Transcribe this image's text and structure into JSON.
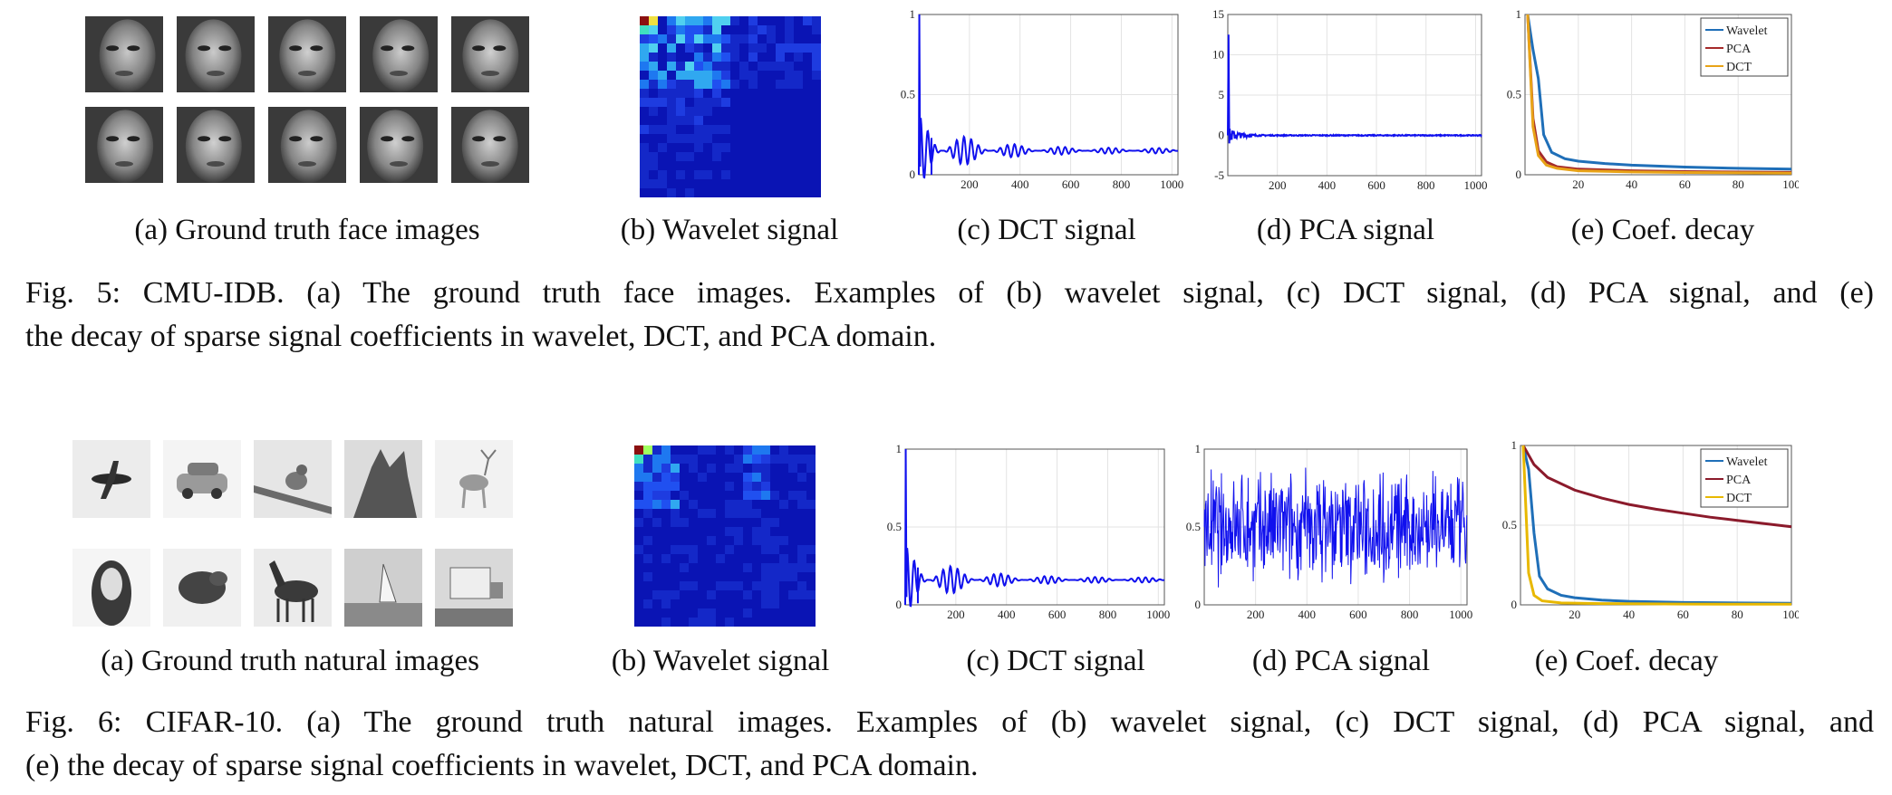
{
  "figures": [
    {
      "id": "fig5",
      "dataset": "CMU-IDB",
      "face_tiles": 10,
      "subcaptions": {
        "a": "(a) Ground truth face images",
        "b": "(b) Wavelet signal",
        "c": "(c) DCT signal",
        "d": "(d) PCA signal",
        "e": "(e) Coef. decay"
      },
      "caption_line1": "Fig. 5: CMU-IDB. (a) The ground truth face images. Examples of (b) wavelet signal, (c) DCT signal, (d) PCA signal, and (e)",
      "caption_line2": "the decay of sparse signal coefficients in wavelet, DCT, and PCA domain.",
      "dct_chart": {
        "type": "line",
        "x_ticks": [
          "200",
          "400",
          "600",
          "800",
          "1000"
        ],
        "y_ticks": [
          "0",
          "0.5",
          "1"
        ],
        "xlim": [
          0,
          1024
        ],
        "ylim": [
          0,
          1
        ],
        "color": "#1010ee"
      },
      "pca_chart": {
        "type": "line",
        "x_ticks": [
          "200",
          "400",
          "600",
          "800",
          "1000"
        ],
        "y_ticks": [
          "-5",
          "0",
          "5",
          "10",
          "15"
        ],
        "xlim": [
          0,
          1024
        ],
        "ylim": [
          -5,
          15
        ],
        "color": "#1010ee"
      },
      "decay_chart": {
        "type": "line",
        "x_ticks": [
          "20",
          "40",
          "60",
          "80",
          "100"
        ],
        "y_ticks": [
          "0",
          "0.5",
          "1"
        ],
        "xlim": [
          0,
          100
        ],
        "ylim": [
          0,
          1
        ],
        "legend": [
          "Wavelet",
          "PCA",
          "DCT"
        ],
        "colors": [
          "#1f6fb8",
          "#a52a2a",
          "#e8a317"
        ],
        "series": [
          {
            "name": "Wavelet",
            "values": [
              [
                1,
                1.0
              ],
              [
                3,
                0.78
              ],
              [
                5,
                0.6
              ],
              [
                7,
                0.25
              ],
              [
                10,
                0.14
              ],
              [
                15,
                0.1
              ],
              [
                20,
                0.085
              ],
              [
                30,
                0.07
              ],
              [
                40,
                0.06
              ],
              [
                60,
                0.048
              ],
              [
                80,
                0.04
              ],
              [
                100,
                0.035
              ]
            ]
          },
          {
            "name": "PCA",
            "values": [
              [
                1,
                1.0
              ],
              [
                3,
                0.35
              ],
              [
                5,
                0.15
              ],
              [
                8,
                0.08
              ],
              [
                12,
                0.05
              ],
              [
                20,
                0.035
              ],
              [
                40,
                0.025
              ],
              [
                60,
                0.02
              ],
              [
                80,
                0.017
              ],
              [
                100,
                0.015
              ]
            ]
          },
          {
            "name": "DCT",
            "values": [
              [
                1,
                1.0
              ],
              [
                3,
                0.3
              ],
              [
                5,
                0.12
              ],
              [
                8,
                0.06
              ],
              [
                12,
                0.04
              ],
              [
                20,
                0.025
              ],
              [
                40,
                0.018
              ],
              [
                60,
                0.014
              ],
              [
                80,
                0.012
              ],
              [
                100,
                0.01
              ]
            ]
          }
        ]
      }
    },
    {
      "id": "fig6",
      "dataset": "CIFAR-10",
      "subcaptions": {
        "a": "(a) Ground truth natural images",
        "b": "(b) Wavelet signal",
        "c": "(c) DCT signal",
        "d": "(d) PCA signal",
        "e": "(e) Coef. decay"
      },
      "caption_line1": "Fig. 6: CIFAR-10. (a) The ground truth natural images. Examples of (b) wavelet signal, (c) DCT signal, (d) PCA signal, and",
      "caption_line2": "(e) the decay of sparse signal coefficients in wavelet, DCT, and PCA domain.",
      "natural_images": [
        "plane",
        "car",
        "bird",
        "cat",
        "deer",
        "dog",
        "frog",
        "horse",
        "ship",
        "truck"
      ],
      "dct_chart": {
        "type": "line",
        "x_ticks": [
          "200",
          "400",
          "600",
          "800",
          "1000"
        ],
        "y_ticks": [
          "0",
          "0.5",
          "1"
        ],
        "xlim": [
          0,
          1024
        ],
        "ylim": [
          0,
          1
        ],
        "color": "#1010ee"
      },
      "pca_chart": {
        "type": "line",
        "x_ticks": [
          "200",
          "400",
          "600",
          "800",
          "1000"
        ],
        "y_ticks": [
          "0",
          "0.5",
          "1"
        ],
        "xlim": [
          0,
          1024
        ],
        "ylim": [
          0,
          1
        ],
        "color": "#1010ee"
      },
      "decay_chart": {
        "type": "line",
        "x_ticks": [
          "20",
          "40",
          "60",
          "80",
          "100"
        ],
        "y_ticks": [
          "0",
          "0.5",
          "1"
        ],
        "xlim": [
          0,
          100
        ],
        "ylim": [
          0,
          1
        ],
        "legend": [
          "Wavelet",
          "PCA",
          "DCT"
        ],
        "colors": [
          "#1f6fb8",
          "#8b1a2b",
          "#e8b800"
        ],
        "series": [
          {
            "name": "Wavelet",
            "values": [
              [
                1,
                1.0
              ],
              [
                3,
                0.85
              ],
              [
                5,
                0.45
              ],
              [
                7,
                0.18
              ],
              [
                10,
                0.1
              ],
              [
                15,
                0.06
              ],
              [
                20,
                0.045
              ],
              [
                30,
                0.03
              ],
              [
                40,
                0.022
              ],
              [
                60,
                0.015
              ],
              [
                80,
                0.012
              ],
              [
                100,
                0.01
              ]
            ]
          },
          {
            "name": "PCA",
            "values": [
              [
                1,
                1.0
              ],
              [
                3,
                0.94
              ],
              [
                5,
                0.88
              ],
              [
                10,
                0.8
              ],
              [
                20,
                0.72
              ],
              [
                30,
                0.67
              ],
              [
                40,
                0.63
              ],
              [
                50,
                0.6
              ],
              [
                60,
                0.575
              ],
              [
                70,
                0.55
              ],
              [
                80,
                0.53
              ],
              [
                90,
                0.51
              ],
              [
                100,
                0.49
              ]
            ]
          },
          {
            "name": "DCT",
            "values": [
              [
                1,
                1.0
              ],
              [
                2,
                0.6
              ],
              [
                3,
                0.2
              ],
              [
                5,
                0.06
              ],
              [
                8,
                0.025
              ],
              [
                15,
                0.012
              ],
              [
                30,
                0.008
              ],
              [
                60,
                0.005
              ],
              [
                100,
                0.004
              ]
            ]
          }
        ]
      }
    }
  ]
}
